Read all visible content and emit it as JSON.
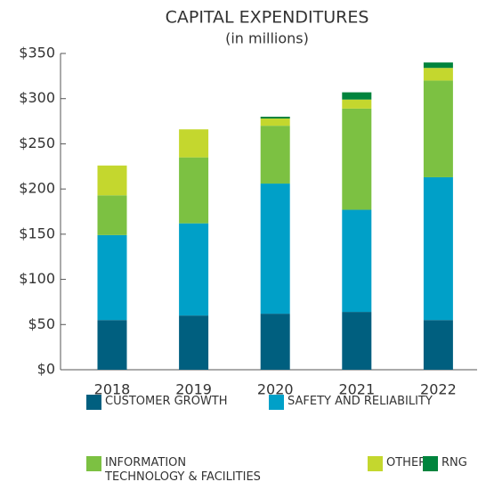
{
  "chart_data": {
    "type": "stacked_bar",
    "title": "CAPITAL EXPENDITURES",
    "subtitle": "(in millions)",
    "categories": [
      "2018",
      "2019",
      "2020",
      "2021",
      "2022"
    ],
    "series": [
      {
        "name": "CUSTOMER GROWTH",
        "color": "#005f7f",
        "values": [
          55,
          60,
          62,
          64,
          55
        ]
      },
      {
        "name": "SAFETY AND RELIABILITY",
        "color": "#00a0c8",
        "values": [
          94,
          102,
          144,
          113,
          158
        ]
      },
      {
        "name": "INFORMATION TECHNOLOGY & FACILITIES",
        "color": "#7cc142",
        "values": [
          44,
          73,
          64,
          112,
          107
        ]
      },
      {
        "name": "OTHER",
        "color": "#c4d72e",
        "values": [
          33,
          31,
          8,
          10,
          14
        ]
      },
      {
        "name": "RNG",
        "color": "#00843d",
        "values": [
          0,
          0,
          2,
          8,
          6
        ]
      }
    ],
    "ylim": [
      0,
      350
    ],
    "yticks": [
      {
        "value": 0,
        "label": "$0"
      },
      {
        "value": 50,
        "label": "$50"
      },
      {
        "value": 100,
        "label": "$100"
      },
      {
        "value": 150,
        "label": "$150"
      },
      {
        "value": 200,
        "label": "$200"
      },
      {
        "value": 250,
        "label": "$250"
      },
      {
        "value": 300,
        "label": "$300"
      },
      {
        "value": 350,
        "label": "$350"
      }
    ]
  }
}
